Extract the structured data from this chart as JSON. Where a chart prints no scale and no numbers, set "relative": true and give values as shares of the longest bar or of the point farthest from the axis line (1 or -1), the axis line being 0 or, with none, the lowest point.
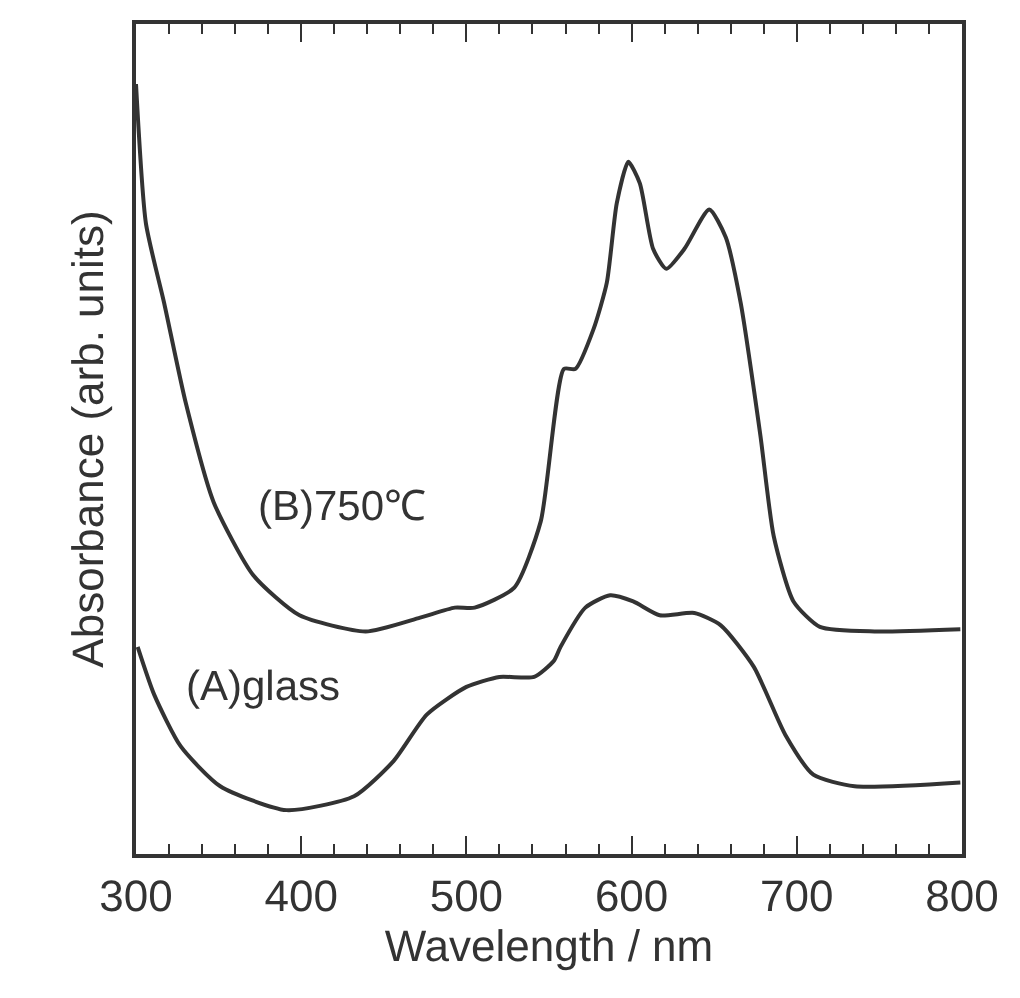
{
  "chart_data": {
    "type": "line",
    "relative": true,
    "xlabel": "Wavelength / nm",
    "ylabel": "Absorbance (arb. units)",
    "xlim": [
      300,
      800
    ],
    "xticks": [
      300,
      400,
      500,
      600,
      700,
      800
    ],
    "legend": false,
    "marker": "none",
    "line_style": "solid",
    "series": [
      {
        "name": "(B)750℃",
        "color": "#333333",
        "x": [
          300,
          306,
          317,
          330,
          347,
          371,
          399,
          439,
          472,
          493,
          505,
          529,
          545,
          559,
          566,
          577,
          585,
          591,
          598,
          605,
          613,
          621,
          632,
          647,
          657,
          666,
          678,
          686,
          698,
          714,
          747,
          799
        ],
        "values": [
          1.0,
          0.819,
          0.716,
          0.587,
          0.457,
          0.362,
          0.31,
          0.289,
          0.307,
          0.32,
          0.32,
          0.346,
          0.432,
          0.63,
          0.63,
          0.682,
          0.742,
          0.845,
          0.899,
          0.871,
          0.786,
          0.76,
          0.786,
          0.837,
          0.801,
          0.716,
          0.543,
          0.413,
          0.328,
          0.295,
          0.289,
          0.292
        ]
      },
      {
        "name": "(A)glass",
        "color": "#333333",
        "x": [
          301,
          311,
          327,
          351,
          391,
          432,
          456,
          476,
          500,
          520,
          541,
          553,
          557,
          572,
          587,
          601,
          617,
          638,
          654,
          674,
          693,
          710,
          735,
          799
        ],
        "values": [
          0.269,
          0.207,
          0.14,
          0.088,
          0.057,
          0.075,
          0.121,
          0.181,
          0.217,
          0.23,
          0.23,
          0.251,
          0.269,
          0.32,
          0.336,
          0.328,
          0.31,
          0.313,
          0.297,
          0.243,
          0.155,
          0.103,
          0.088,
          0.093
        ]
      }
    ]
  }
}
